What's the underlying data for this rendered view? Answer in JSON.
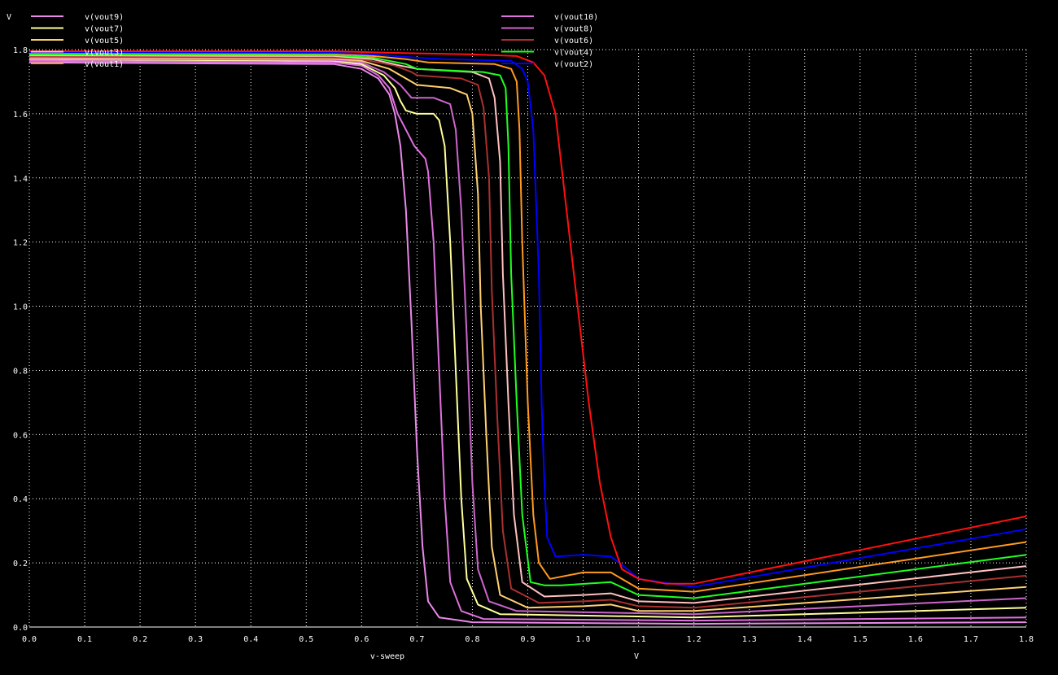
{
  "chart_data": {
    "type": "line",
    "title": "",
    "xlabel": "v-sweep",
    "x_unit": "V",
    "ylabel": "V",
    "xlim": [
      0.0,
      1.8
    ],
    "ylim": [
      0.0,
      1.8
    ],
    "x_ticks": [
      "0.0",
      "0.1",
      "0.2",
      "0.3",
      "0.4",
      "0.5",
      "0.6",
      "0.7",
      "0.8",
      "0.9",
      "1.0",
      "1.1",
      "1.2",
      "1.3",
      "1.4",
      "1.5",
      "1.6",
      "1.7",
      "1.8"
    ],
    "y_ticks": [
      "0.0",
      "0.2",
      "0.4",
      "0.6",
      "0.8",
      "1.0",
      "1.2",
      "1.4",
      "1.6",
      "1.8"
    ],
    "grid": true,
    "legend_position": "top",
    "series": [
      {
        "name": "v(vout9)",
        "color": "#e888e8",
        "points": [
          [
            0,
            1.76
          ],
          [
            0.55,
            1.755
          ],
          [
            0.6,
            1.74
          ],
          [
            0.63,
            1.71
          ],
          [
            0.65,
            1.66
          ],
          [
            0.66,
            1.6
          ],
          [
            0.67,
            1.5
          ],
          [
            0.68,
            1.3
          ],
          [
            0.69,
            0.95
          ],
          [
            0.7,
            0.55
          ],
          [
            0.71,
            0.25
          ],
          [
            0.72,
            0.08
          ],
          [
            0.74,
            0.03
          ],
          [
            0.8,
            0.015
          ],
          [
            1.2,
            0.01
          ],
          [
            1.8,
            0.015
          ]
        ]
      },
      {
        "name": "v(vout10)",
        "color": "#e070e0",
        "points": [
          [
            0,
            1.765
          ],
          [
            0.55,
            1.76
          ],
          [
            0.6,
            1.75
          ],
          [
            0.63,
            1.72
          ],
          [
            0.65,
            1.68
          ],
          [
            0.665,
            1.6
          ],
          [
            0.68,
            1.55
          ],
          [
            0.695,
            1.5
          ],
          [
            0.715,
            1.46
          ],
          [
            0.72,
            1.42
          ],
          [
            0.73,
            1.2
          ],
          [
            0.74,
            0.8
          ],
          [
            0.75,
            0.4
          ],
          [
            0.76,
            0.14
          ],
          [
            0.78,
            0.05
          ],
          [
            0.82,
            0.025
          ],
          [
            1.2,
            0.02
          ],
          [
            1.8,
            0.03
          ]
        ]
      },
      {
        "name": "v(vout7)",
        "color": "#ffff99",
        "points": [
          [
            0,
            1.77
          ],
          [
            0.55,
            1.765
          ],
          [
            0.6,
            1.755
          ],
          [
            0.64,
            1.72
          ],
          [
            0.66,
            1.68
          ],
          [
            0.67,
            1.64
          ],
          [
            0.68,
            1.61
          ],
          [
            0.7,
            1.6
          ],
          [
            0.73,
            1.6
          ],
          [
            0.74,
            1.58
          ],
          [
            0.75,
            1.5
          ],
          [
            0.76,
            1.2
          ],
          [
            0.77,
            0.8
          ],
          [
            0.78,
            0.4
          ],
          [
            0.79,
            0.15
          ],
          [
            0.81,
            0.07
          ],
          [
            0.85,
            0.04
          ],
          [
            1.2,
            0.03
          ],
          [
            1.8,
            0.06
          ]
        ]
      },
      {
        "name": "v(vout8)",
        "color": "#cc66cc",
        "points": [
          [
            0,
            1.772
          ],
          [
            0.55,
            1.768
          ],
          [
            0.6,
            1.76
          ],
          [
            0.64,
            1.73
          ],
          [
            0.67,
            1.69
          ],
          [
            0.69,
            1.65
          ],
          [
            0.73,
            1.65
          ],
          [
            0.76,
            1.63
          ],
          [
            0.77,
            1.55
          ],
          [
            0.78,
            1.3
          ],
          [
            0.79,
            0.9
          ],
          [
            0.8,
            0.45
          ],
          [
            0.81,
            0.18
          ],
          [
            0.83,
            0.08
          ],
          [
            0.88,
            0.05
          ],
          [
            1.2,
            0.04
          ],
          [
            1.8,
            0.09
          ]
        ]
      },
      {
        "name": "v(vout5)",
        "color": "#ffd070",
        "points": [
          [
            0,
            1.775
          ],
          [
            0.55,
            1.772
          ],
          [
            0.6,
            1.765
          ],
          [
            0.65,
            1.74
          ],
          [
            0.68,
            1.71
          ],
          [
            0.7,
            1.69
          ],
          [
            0.76,
            1.68
          ],
          [
            0.79,
            1.66
          ],
          [
            0.8,
            1.6
          ],
          [
            0.81,
            1.35
          ],
          [
            0.815,
            1.0
          ],
          [
            0.825,
            0.6
          ],
          [
            0.835,
            0.25
          ],
          [
            0.85,
            0.1
          ],
          [
            0.9,
            0.06
          ],
          [
            1.0,
            0.065
          ],
          [
            1.05,
            0.07
          ],
          [
            1.1,
            0.05
          ],
          [
            1.2,
            0.05
          ],
          [
            1.8,
            0.125
          ]
        ]
      },
      {
        "name": "v(vout6)",
        "color": "#aa3030",
        "points": [
          [
            0,
            1.778
          ],
          [
            0.55,
            1.775
          ],
          [
            0.6,
            1.77
          ],
          [
            0.66,
            1.75
          ],
          [
            0.69,
            1.73
          ],
          [
            0.7,
            1.72
          ],
          [
            0.78,
            1.71
          ],
          [
            0.81,
            1.69
          ],
          [
            0.82,
            1.62
          ],
          [
            0.83,
            1.4
          ],
          [
            0.835,
            1.05
          ],
          [
            0.845,
            0.65
          ],
          [
            0.855,
            0.3
          ],
          [
            0.87,
            0.12
          ],
          [
            0.92,
            0.075
          ],
          [
            1.0,
            0.08
          ],
          [
            1.05,
            0.085
          ],
          [
            1.1,
            0.065
          ],
          [
            1.2,
            0.06
          ],
          [
            1.8,
            0.16
          ]
        ]
      },
      {
        "name": "v(vout3)",
        "color": "#ffc0c0",
        "points": [
          [
            0,
            1.782
          ],
          [
            0.55,
            1.78
          ],
          [
            0.62,
            1.77
          ],
          [
            0.67,
            1.75
          ],
          [
            0.7,
            1.74
          ],
          [
            0.8,
            1.73
          ],
          [
            0.83,
            1.71
          ],
          [
            0.84,
            1.65
          ],
          [
            0.85,
            1.45
          ],
          [
            0.855,
            1.1
          ],
          [
            0.865,
            0.7
          ],
          [
            0.875,
            0.35
          ],
          [
            0.89,
            0.14
          ],
          [
            0.93,
            0.095
          ],
          [
            1.0,
            0.1
          ],
          [
            1.05,
            0.105
          ],
          [
            1.1,
            0.08
          ],
          [
            1.2,
            0.075
          ],
          [
            1.8,
            0.19
          ]
        ]
      },
      {
        "name": "v(vout4)",
        "color": "#20ff20",
        "points": [
          [
            0,
            1.785
          ],
          [
            0.55,
            1.783
          ],
          [
            0.62,
            1.775
          ],
          [
            0.68,
            1.755
          ],
          [
            0.7,
            1.74
          ],
          [
            0.82,
            1.73
          ],
          [
            0.85,
            1.72
          ],
          [
            0.86,
            1.68
          ],
          [
            0.865,
            1.5
          ],
          [
            0.87,
            1.1
          ],
          [
            0.88,
            0.7
          ],
          [
            0.89,
            0.35
          ],
          [
            0.905,
            0.14
          ],
          [
            0.93,
            0.13
          ],
          [
            0.96,
            0.13
          ],
          [
            1.05,
            0.14
          ],
          [
            1.1,
            0.1
          ],
          [
            1.2,
            0.09
          ],
          [
            1.8,
            0.225
          ]
        ]
      },
      {
        "name": "v(vout1)",
        "color": "#ff9a20",
        "points": [
          [
            0,
            1.79
          ],
          [
            0.55,
            1.788
          ],
          [
            0.62,
            1.78
          ],
          [
            0.68,
            1.77
          ],
          [
            0.72,
            1.76
          ],
          [
            0.84,
            1.755
          ],
          [
            0.87,
            1.74
          ],
          [
            0.88,
            1.7
          ],
          [
            0.885,
            1.55
          ],
          [
            0.89,
            1.2
          ],
          [
            0.9,
            0.7
          ],
          [
            0.91,
            0.35
          ],
          [
            0.92,
            0.2
          ],
          [
            0.94,
            0.15
          ],
          [
            1.0,
            0.17
          ],
          [
            1.05,
            0.17
          ],
          [
            1.1,
            0.12
          ],
          [
            1.2,
            0.11
          ],
          [
            1.8,
            0.265
          ]
        ]
      },
      {
        "name": "v(vout2)",
        "color": "#0000ff",
        "points": [
          [
            0,
            1.792
          ],
          [
            0.55,
            1.79
          ],
          [
            0.62,
            1.785
          ],
          [
            0.7,
            1.775
          ],
          [
            0.75,
            1.77
          ],
          [
            0.87,
            1.765
          ],
          [
            0.89,
            1.74
          ],
          [
            0.9,
            1.7
          ],
          [
            0.91,
            1.55
          ],
          [
            0.92,
            1.1
          ],
          [
            0.925,
            0.7
          ],
          [
            0.93,
            0.45
          ],
          [
            0.935,
            0.28
          ],
          [
            0.95,
            0.22
          ],
          [
            1.0,
            0.225
          ],
          [
            1.05,
            0.22
          ],
          [
            1.08,
            0.18
          ],
          [
            1.1,
            0.15
          ],
          [
            1.2,
            0.125
          ],
          [
            1.8,
            0.305
          ]
        ]
      },
      {
        "name": "",
        "color": "#ff1010",
        "points": [
          [
            0,
            1.795
          ],
          [
            0.55,
            1.795
          ],
          [
            0.65,
            1.79
          ],
          [
            0.8,
            1.785
          ],
          [
            0.88,
            1.78
          ],
          [
            0.91,
            1.76
          ],
          [
            0.93,
            1.72
          ],
          [
            0.95,
            1.6
          ],
          [
            0.97,
            1.3
          ],
          [
            0.99,
            1.0
          ],
          [
            1.01,
            0.7
          ],
          [
            1.03,
            0.45
          ],
          [
            1.05,
            0.28
          ],
          [
            1.07,
            0.18
          ],
          [
            1.1,
            0.15
          ],
          [
            1.15,
            0.135
          ],
          [
            1.2,
            0.135
          ],
          [
            1.8,
            0.345
          ]
        ]
      }
    ]
  }
}
